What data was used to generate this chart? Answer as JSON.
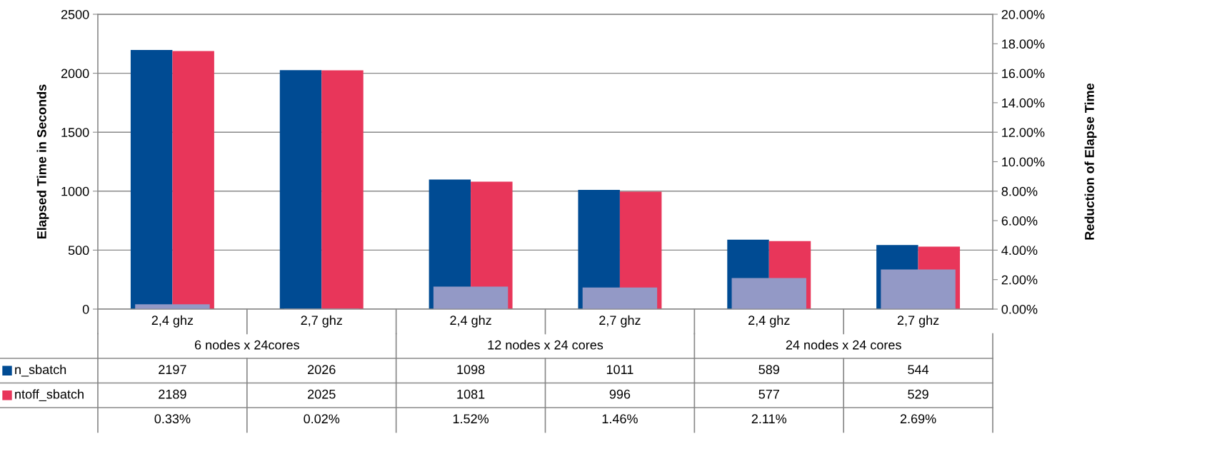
{
  "chart_data": {
    "type": "bar",
    "categories": [
      "2,4 ghz",
      "2,7 ghz",
      "2,4 ghz",
      "2,7 ghz",
      "2,4 ghz",
      "2,7 ghz"
    ],
    "annotations": [
      "6 nodes x 24cores",
      "12 nodes x 24 cores",
      "24 nodes x 24 cores"
    ],
    "series": [
      {
        "name": "n_sbatch",
        "color": "#004b93",
        "values": [
          2197,
          2026,
          1098,
          1011,
          589,
          544
        ]
      },
      {
        "name": "ntoff_sbatch",
        "color": "#e8365a",
        "values": [
          2189,
          2025,
          1081,
          996,
          577,
          529
        ]
      },
      {
        "color": "#9399c6",
        "axis": "y2",
        "values": [
          0.33,
          0.02,
          1.52,
          1.46,
          2.11,
          2.69
        ],
        "value_labels": [
          "0.33%",
          "0.02%",
          "1.52%",
          "1.46%",
          "2.11%",
          "2.69%"
        ]
      }
    ],
    "data_labels": true,
    "ylabel": "Elapsed Time in Seconds",
    "y2label": "Reduction of Elapse Time",
    "ylim": [
      0,
      2500
    ],
    "yticks": [
      0,
      500,
      1000,
      1500,
      2000,
      2500
    ],
    "y2lim": [
      0,
      20
    ],
    "y2ticks": [
      {
        "value": 0,
        "label": "0.00%"
      },
      {
        "value": 2,
        "label": "2.00%"
      },
      {
        "value": 4,
        "label": "4.00%"
      },
      {
        "value": 6,
        "label": "6.00%"
      },
      {
        "value": 8,
        "label": "8.00%"
      },
      {
        "value": 10,
        "label": "10.00%"
      },
      {
        "value": 12,
        "label": "12.00%"
      },
      {
        "value": 14,
        "label": "14.00%"
      },
      {
        "value": 16,
        "label": "16.00%"
      },
      {
        "value": 18,
        "label": "18.00%"
      },
      {
        "value": 20,
        "label": "20.00%"
      }
    ],
    "grid": "y",
    "legend": "bottom left"
  }
}
